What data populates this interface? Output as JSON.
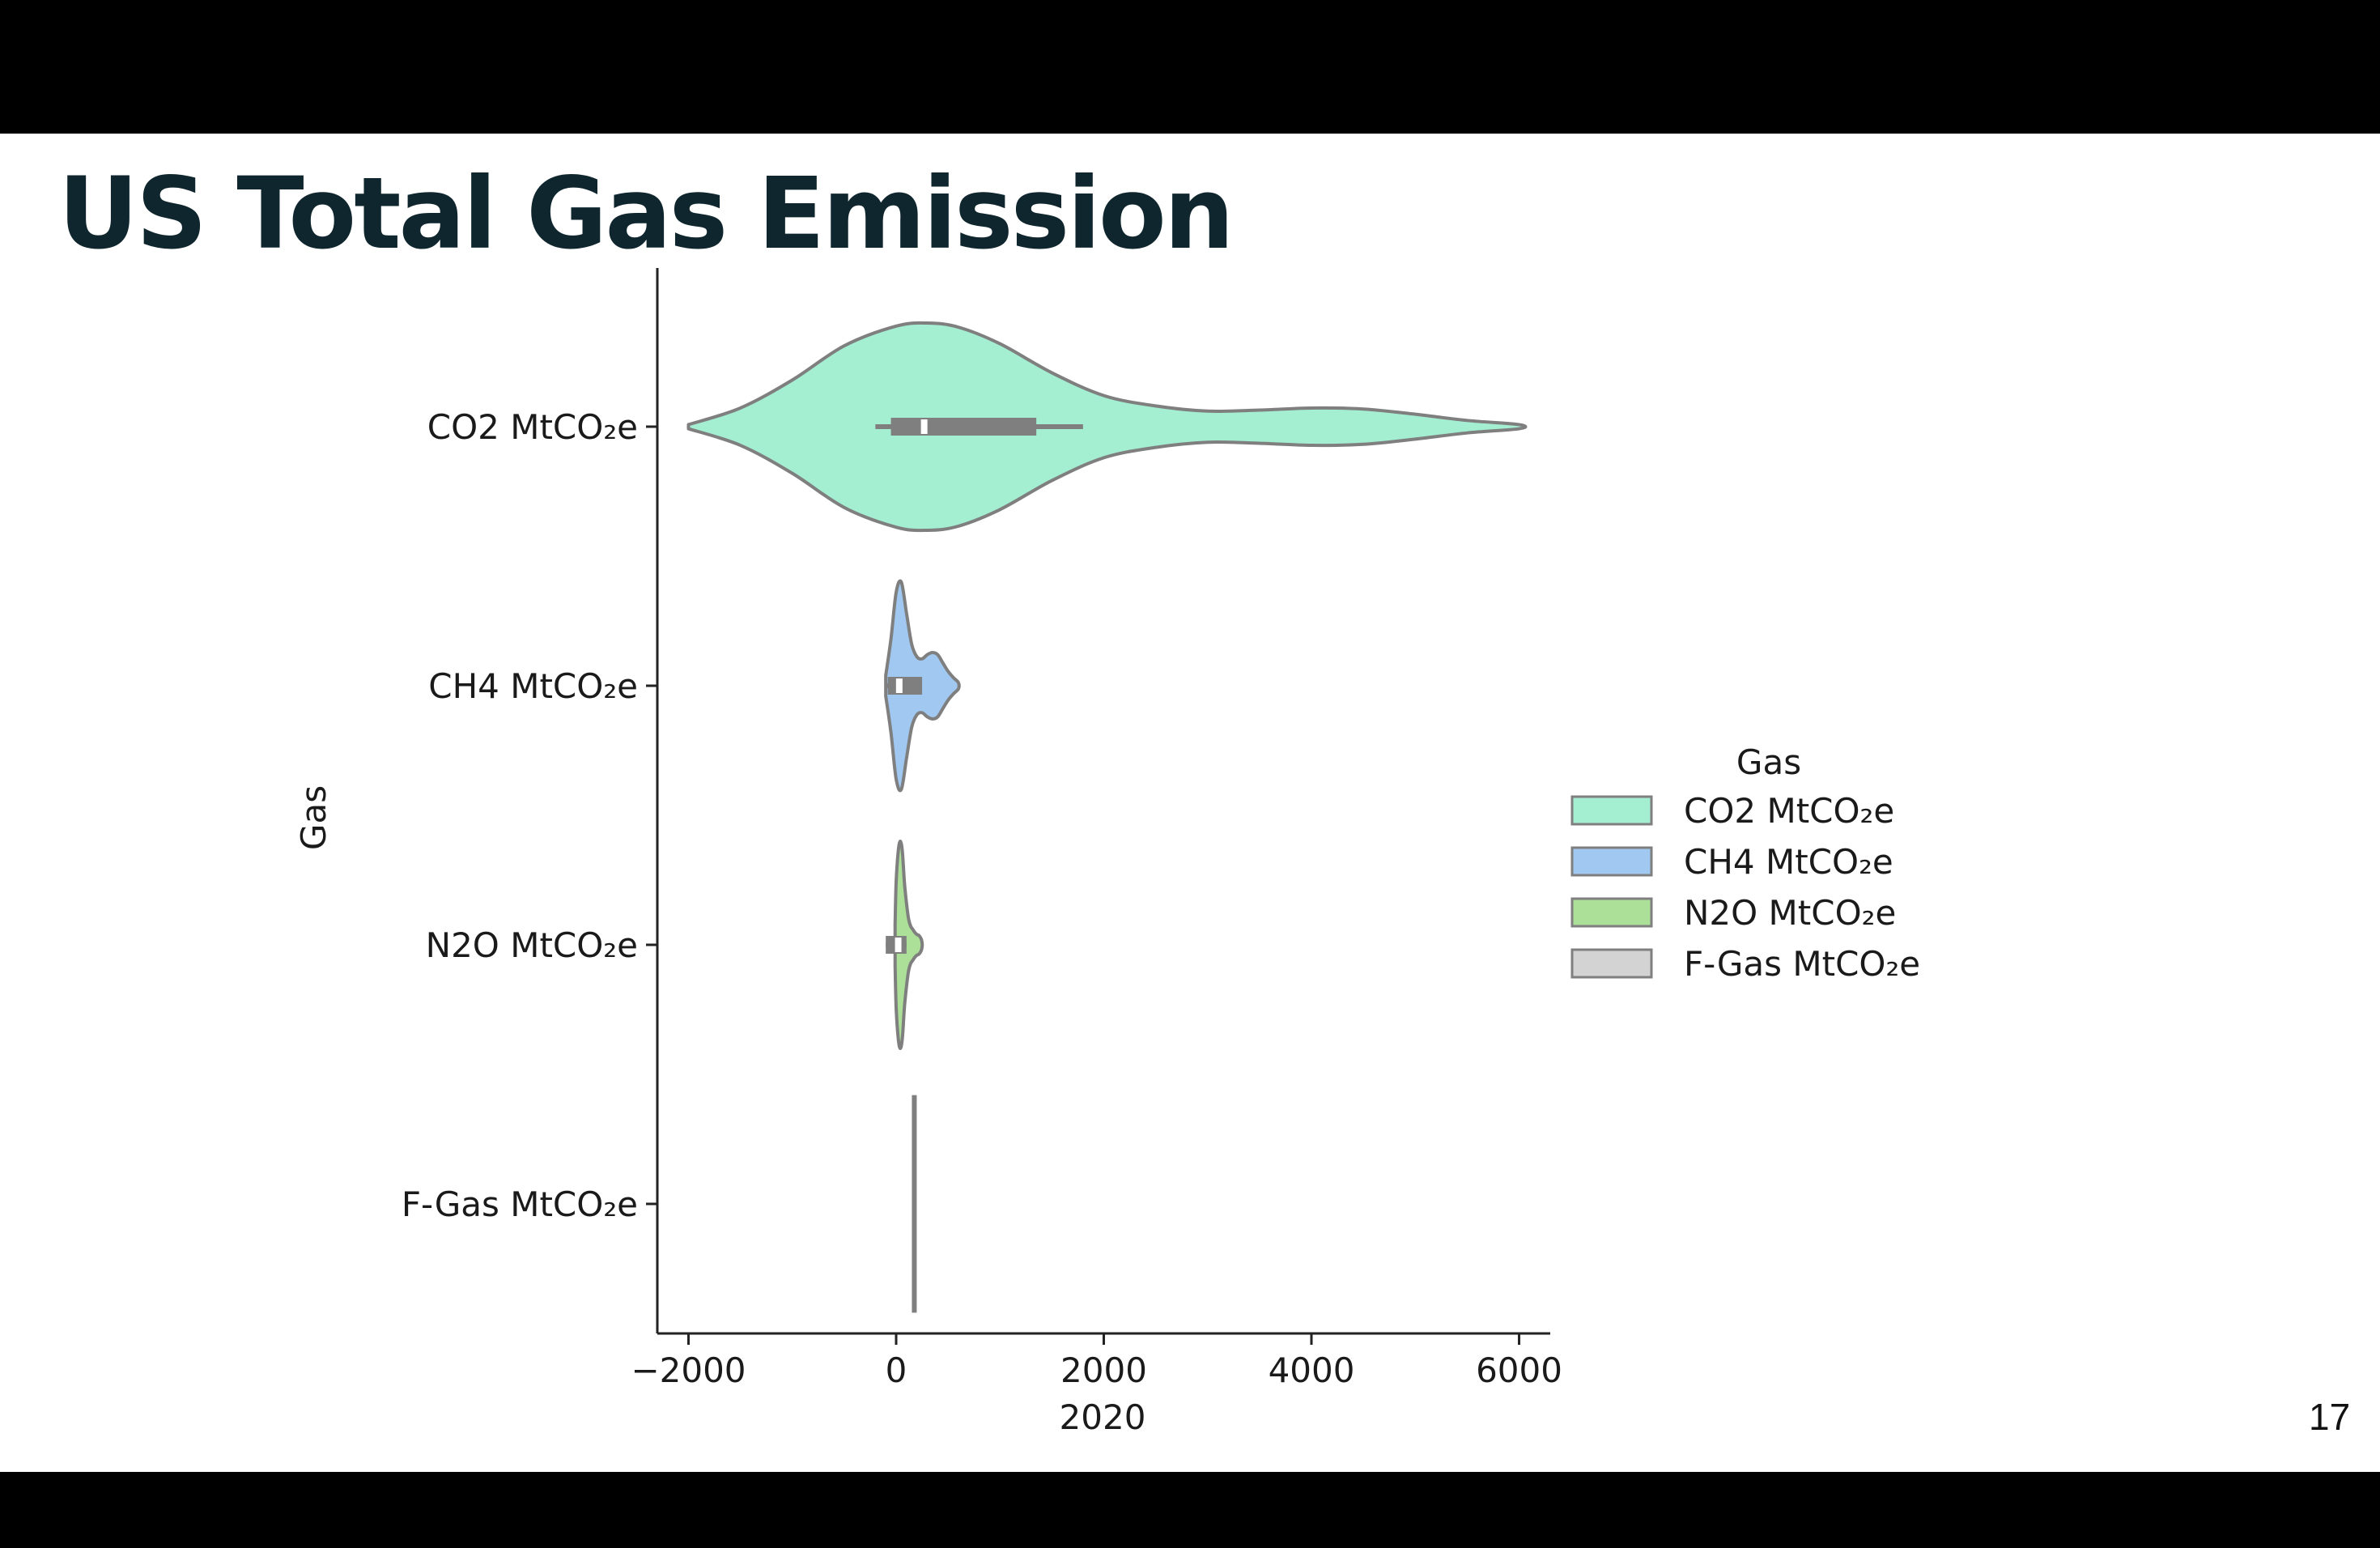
{
  "slide": {
    "title": "US Total Gas Emission",
    "page_number": "17"
  },
  "chart_data": {
    "type": "violin",
    "orientation": "horizontal",
    "title": "",
    "xlabel": "2020",
    "ylabel": "Gas",
    "xlim": [
      -2300,
      6300
    ],
    "xticks": [
      -2000,
      0,
      2000,
      4000,
      6000
    ],
    "xtick_labels": [
      "−2000",
      "0",
      "2000",
      "4000",
      "6000"
    ],
    "categories": [
      "CO2 MtCO₂e",
      "CH4 MtCO₂e",
      "N2O MtCO₂e",
      "F-Gas MtCO₂e"
    ],
    "legend": {
      "title": "Gas",
      "position": "right",
      "entries": [
        "CO2 MtCO₂e",
        "CH4 MtCO₂e",
        "N2O MtCO₂e",
        "F-Gas MtCO₂e"
      ]
    },
    "colors": [
      "#a4eed2",
      "#a0c8f0",
      "#acdf98",
      "#d3d3d3"
    ],
    "edge_color": "#7f7f7f",
    "grid": false,
    "series": [
      {
        "name": "CO2 MtCO₂e",
        "min": -2000,
        "max": 6000,
        "q1": -50,
        "median": 270,
        "q3": 1350,
        "whisker_low": -200,
        "whisker_high": 1800,
        "density_x": [
          -2000,
          -1500,
          -1000,
          -500,
          0,
          300,
          600,
          1000,
          1500,
          2000,
          2500,
          3000,
          3500,
          4000,
          4500,
          5000,
          5500,
          6000
        ],
        "density_w": [
          0.02,
          0.18,
          0.45,
          0.78,
          0.97,
          1.0,
          0.96,
          0.8,
          0.52,
          0.3,
          0.2,
          0.15,
          0.16,
          0.18,
          0.17,
          0.12,
          0.06,
          0.02
        ]
      },
      {
        "name": "CH4 MtCO₂e",
        "min": -100,
        "max": 600,
        "q1": -80,
        "median": 30,
        "q3": 250,
        "whisker_low": -100,
        "whisker_high": 250,
        "density_x": [
          -100,
          -50,
          0,
          50,
          100,
          150,
          200,
          250,
          300,
          350,
          400,
          450,
          500,
          550,
          600
        ],
        "density_w": [
          0.1,
          0.45,
          0.9,
          1.0,
          0.7,
          0.4,
          0.28,
          0.26,
          0.3,
          0.32,
          0.3,
          0.22,
          0.14,
          0.08,
          0.03
        ]
      },
      {
        "name": "N2O MtCO₂e",
        "min": -10,
        "max": 250,
        "q1": -100,
        "median": 20,
        "q3": 100,
        "whisker_low": -100,
        "whisker_high": 100,
        "density_x": [
          -10,
          0,
          20,
          40,
          60,
          80,
          100,
          120,
          140,
          160,
          180,
          200,
          220,
          240,
          250
        ],
        "density_w": [
          0.2,
          0.6,
          0.9,
          1.0,
          0.9,
          0.6,
          0.4,
          0.25,
          0.18,
          0.15,
          0.12,
          0.1,
          0.09,
          0.06,
          0.02
        ]
      },
      {
        "name": "F-Gas MtCO₂e",
        "min": 175,
        "max": 175,
        "q1": 175,
        "median": 175,
        "q3": 175,
        "whisker_low": 175,
        "whisker_high": 175,
        "density_x": [
          175
        ],
        "density_w": [
          0
        ]
      }
    ]
  }
}
